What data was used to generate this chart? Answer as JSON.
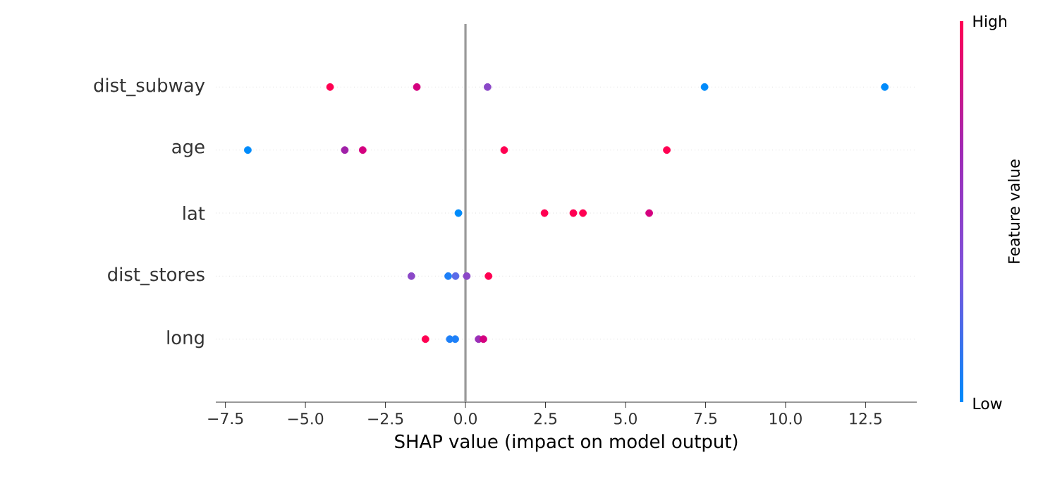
{
  "chart_data": {
    "type": "scatter",
    "orientation": "horizontal",
    "xlabel": "SHAP value (impact on model output)",
    "clabel": "Feature value",
    "categories": [
      "dist_subway",
      "age",
      "lat",
      "dist_stores",
      "long"
    ],
    "series": [
      {
        "values": [
          -4.23,
          -6.8,
          -0.22,
          -1.69,
          -1.25
        ],
        "colors": [
          "#ff0052",
          "#008bfb",
          "#008bfb",
          "#8b48c8",
          "#ff0052"
        ]
      },
      {
        "values": [
          -1.52,
          -3.77,
          2.47,
          -0.54,
          -0.49
        ],
        "colors": [
          "#d4007f",
          "#a020a8",
          "#ff0052",
          "#1e80f8",
          "#1e80f8"
        ]
      },
      {
        "values": [
          0.69,
          -3.21,
          3.37,
          -0.31,
          -0.32
        ],
        "colors": [
          "#8b48c8",
          "#d4007f",
          "#ff0052",
          "#5b6be8",
          "#1e80f8"
        ]
      },
      {
        "values": [
          7.47,
          1.21,
          3.67,
          0.04,
          0.41
        ],
        "colors": [
          "#008bfb",
          "#ff0052",
          "#ff0052",
          "#8b48c8",
          "#9b30b8"
        ]
      },
      {
        "values": [
          13.1,
          6.29,
          5.74,
          0.72,
          0.56
        ],
        "colors": [
          "#008bfb",
          "#ff0052",
          "#d4007f",
          "#ff0052",
          "#d4007f"
        ]
      }
    ],
    "xlim": [
      -7.8,
      14.1
    ],
    "xticks": [
      {
        "value": -7.5,
        "label": "−7.5"
      },
      {
        "value": -5,
        "label": "−5.0"
      },
      {
        "value": -2.5,
        "label": "−2.5"
      },
      {
        "value": 0,
        "label": "0.0"
      },
      {
        "value": 2.5,
        "label": "2.5"
      },
      {
        "value": 5,
        "label": "5.0"
      },
      {
        "value": 7.5,
        "label": "7.5"
      },
      {
        "value": 10,
        "label": "10.0"
      },
      {
        "value": 12.5,
        "label": "12.5"
      }
    ],
    "annotations": [
      "High",
      "Low"
    ],
    "ref_lines": [
      {
        "axis": "x",
        "value": 0,
        "color": "#999999"
      }
    ],
    "grid": "y",
    "marker": "circle"
  }
}
